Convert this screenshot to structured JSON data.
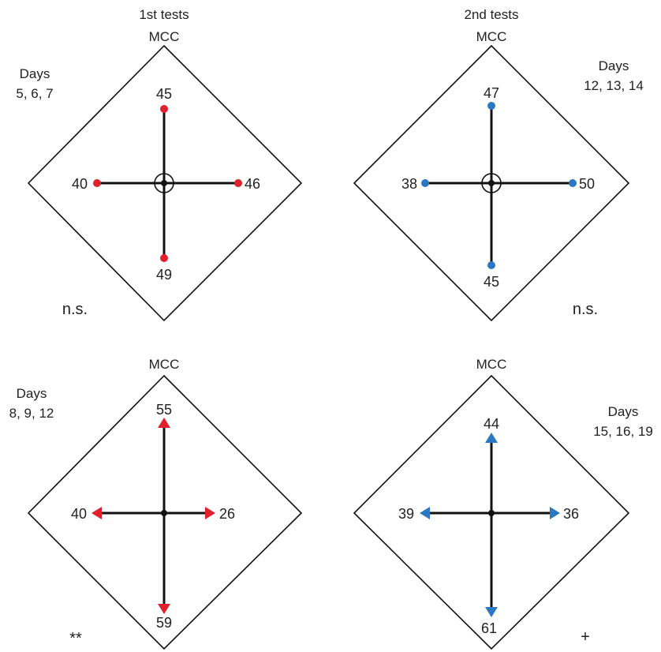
{
  "column_headers": [
    "1st tests",
    "2nd tests"
  ],
  "panels": [
    {
      "id": "top-left",
      "mcc_label": "MCC",
      "days_title": "Days",
      "days_values": "5, 6, 7",
      "marker": "circle",
      "color": "#e0202a",
      "values": {
        "top": "45",
        "left": "40",
        "right": "46",
        "bottom": "49"
      },
      "significance": "n.s.",
      "center_ring": true
    },
    {
      "id": "top-right",
      "mcc_label": "MCC",
      "days_title": "Days",
      "days_values": "12, 13, 14",
      "marker": "circle",
      "color": "#2a78c2",
      "values": {
        "top": "47",
        "left": "38",
        "right": "50",
        "bottom": "45"
      },
      "significance": "n.s.",
      "center_ring": true
    },
    {
      "id": "bottom-left",
      "mcc_label": "MCC",
      "days_title": "Days",
      "days_values": "8, 9, 12",
      "marker": "arrow",
      "color": "#e0202a",
      "values": {
        "top": "55",
        "left": "40",
        "right": "26",
        "bottom": "59"
      },
      "significance": "**",
      "center_ring": false
    },
    {
      "id": "bottom-right",
      "mcc_label": "MCC",
      "days_title": "Days",
      "days_values": "15, 16, 19",
      "marker": "arrow",
      "color": "#2a78c2",
      "values": {
        "top": "44",
        "left": "39",
        "right": "36",
        "bottom": "61"
      },
      "significance": "+",
      "center_ring": false
    }
  ]
}
